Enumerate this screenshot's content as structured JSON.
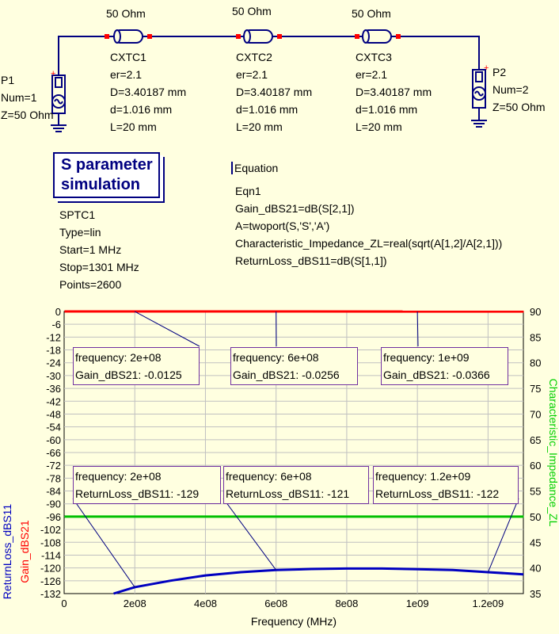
{
  "schematic": {
    "lines": [
      {
        "id": "CXTC1",
        "impedance_label": "50 Ohm",
        "params": [
          "er=2.1",
          "D=3.40187 mm",
          "d=1.016 mm",
          "L=20 mm"
        ]
      },
      {
        "id": "CXTC2",
        "impedance_label": "50 Ohm",
        "params": [
          "er=2.1",
          "D=3.40187 mm",
          "d=1.016 mm",
          "L=20 mm"
        ]
      },
      {
        "id": "CXTC3",
        "impedance_label": "50 Ohm",
        "params": [
          "er=2.1",
          "D=3.40187 mm",
          "d=1.016 mm",
          "L=20 mm"
        ]
      }
    ],
    "ports": [
      {
        "id": "P1",
        "params": [
          "Num=1",
          "Z=50 Ohm"
        ]
      },
      {
        "id": "P2",
        "params": [
          "Num=2",
          "Z=50 Ohm"
        ]
      }
    ],
    "simulation": {
      "title_line1": "S parameter",
      "title_line2": "simulation",
      "id": "SPTC1",
      "params": [
        "Type=lin",
        "Start=1 MHz",
        "Stop=1301 MHz",
        "Points=2600"
      ]
    },
    "equation": {
      "title": "Equation",
      "id": "Eqn1",
      "lines": [
        "Gain_dBS21=dB(S[2,1])",
        "A=twoport(S,'S','A')",
        "Characteristic_Impedance_ZL=real(sqrt(A[1,2]/A[2,1]))",
        "ReturnLoss_dBS11=dB(S[1,1])"
      ]
    }
  },
  "chart_data": {
    "type": "line",
    "xlabel": "Frequency (MHz)",
    "ylabel_left": [
      "ReturnLoss_dBS11",
      "Gain_dBS21"
    ],
    "ylabel_right": "Characteristic_Impedance_ZL",
    "xlim": [
      0,
      1300000000
    ],
    "ylim_left": [
      -132,
      0
    ],
    "ylim_right": [
      35,
      90
    ],
    "x_ticks": [
      "0",
      "2e08",
      "4e08",
      "6e08",
      "8e08",
      "1e09",
      "1.2e09"
    ],
    "y_left_ticks": [
      "0",
      "-6",
      "-12",
      "-18",
      "-24",
      "-30",
      "-36",
      "-42",
      "-48",
      "-54",
      "-60",
      "-66",
      "-72",
      "-78",
      "-84",
      "-90",
      "-96",
      "-102",
      "-108",
      "-114",
      "-120",
      "-126",
      "-132"
    ],
    "y_right_ticks": [
      "90",
      "85",
      "80",
      "75",
      "70",
      "65",
      "60",
      "55",
      "50",
      "45",
      "40",
      "35"
    ],
    "grid": true,
    "series": [
      {
        "name": "Gain_dBS21",
        "axis": "left",
        "color": "#ff0000",
        "x": [
          1000000,
          1301000000
        ],
        "y": [
          -0.01,
          -0.04
        ]
      },
      {
        "name": "ReturnLoss_dBS11",
        "axis": "left",
        "color": "#0000c0",
        "x": [
          140000000,
          200000000,
          300000000,
          400000000,
          500000000,
          600000000,
          700000000,
          800000000,
          900000000,
          1000000000,
          1100000000,
          1200000000,
          1300000000
        ],
        "y": [
          -132,
          -129,
          -126,
          -123.5,
          -122,
          -121,
          -120.5,
          -120.3,
          -120.3,
          -120.6,
          -121,
          -122,
          -123
        ]
      },
      {
        "name": "Characteristic_Impedance_ZL",
        "axis": "right",
        "color": "#00c000",
        "x": [
          1000000,
          1301000000
        ],
        "y": [
          50,
          50
        ]
      }
    ],
    "markers": [
      {
        "line1": "frequency: 2e+08",
        "line2": "Gain_dBS21: -0.0125",
        "x": 200000000,
        "y": -0.0125,
        "axis": "left"
      },
      {
        "line1": "frequency: 6e+08",
        "line2": "Gain_dBS21: -0.0256",
        "x": 600000000,
        "y": -0.0256,
        "axis": "left"
      },
      {
        "line1": "frequency: 1e+09",
        "line2": "Gain_dBS21: -0.0366",
        "x": 1000000000,
        "y": -0.0366,
        "axis": "left"
      },
      {
        "line1": "frequency: 2e+08",
        "line2": "ReturnLoss_dBS11: -129",
        "x": 200000000,
        "y": -129,
        "axis": "left"
      },
      {
        "line1": "frequency: 6e+08",
        "line2": "ReturnLoss_dBS11: -121",
        "x": 600000000,
        "y": -121,
        "axis": "left"
      },
      {
        "line1": "frequency: 1.2e+09",
        "line2": "ReturnLoss_dBS11: -122",
        "x": 1200000000,
        "y": -122,
        "axis": "left"
      }
    ]
  }
}
